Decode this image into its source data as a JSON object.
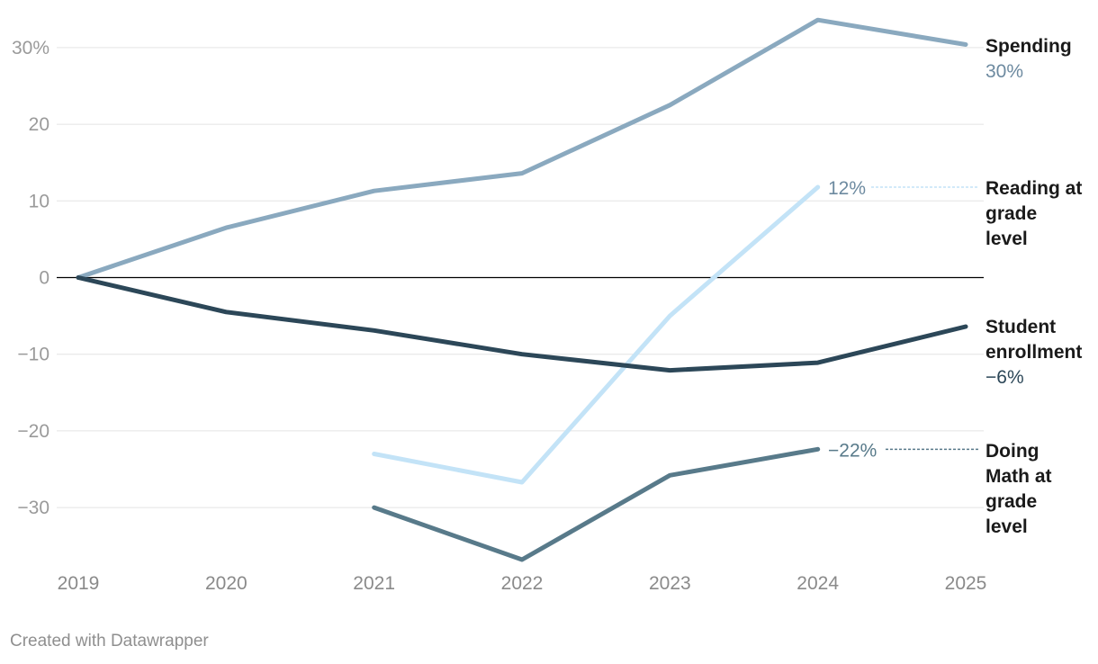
{
  "chart_data": {
    "type": "line",
    "x": [
      2019,
      2020,
      2021,
      2022,
      2023,
      2024,
      2025
    ],
    "y_ticks": [
      "30%",
      "20",
      "10",
      "0",
      "−10",
      "−20",
      "−30"
    ],
    "y_tick_values": [
      30,
      20,
      10,
      0,
      -10,
      -20,
      -30
    ],
    "ylim": [
      -37,
      34
    ],
    "grid": true,
    "series": [
      {
        "name": "Spending",
        "color": "#8aa9bf",
        "points": [
          [
            2019,
            0
          ],
          [
            2020,
            6.5
          ],
          [
            2021,
            11.3
          ],
          [
            2022,
            13.6
          ],
          [
            2023,
            22.5
          ],
          [
            2024,
            33.6
          ],
          [
            2025,
            30.4
          ]
        ],
        "value_label": "30%",
        "label_color": "#6d8aa0"
      },
      {
        "name": "Reading at grade level",
        "name_lines": [
          "Reading at",
          "grade",
          "level"
        ],
        "color": "#c3e3f7",
        "points": [
          [
            2021,
            -23
          ],
          [
            2022,
            -26.7
          ],
          [
            2023,
            -5
          ],
          [
            2024,
            11.8
          ]
        ],
        "value_label": "12%",
        "label_color": "#6d8aa0"
      },
      {
        "name": "Student enrollment",
        "name_lines": [
          "Student",
          "enrollment"
        ],
        "color": "#2c4758",
        "points": [
          [
            2019,
            0
          ],
          [
            2020,
            -4.5
          ],
          [
            2021,
            -6.9
          ],
          [
            2022,
            -10
          ],
          [
            2023,
            -12.1
          ],
          [
            2024,
            -11.1
          ],
          [
            2025,
            -6.4
          ]
        ],
        "value_label": "−6%",
        "label_color": "#2c4758"
      },
      {
        "name": "Doing Math at grade level",
        "name_lines": [
          "Doing",
          "Math at",
          "grade",
          "level"
        ],
        "color": "#587a8a",
        "points": [
          [
            2021,
            -30
          ],
          [
            2022,
            -36.8
          ],
          [
            2023,
            -25.8
          ],
          [
            2024,
            -22.4
          ]
        ],
        "value_label": "−22%",
        "label_color": "#587a8a"
      }
    ]
  },
  "footer": {
    "credit": "Created with Datawrapper"
  }
}
